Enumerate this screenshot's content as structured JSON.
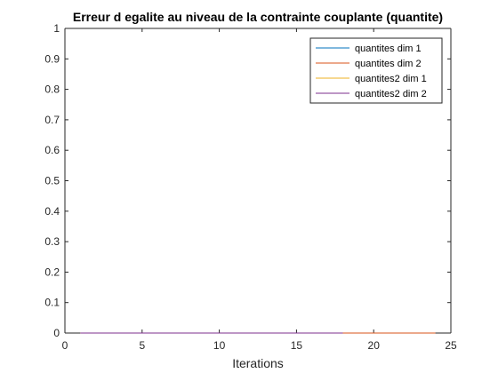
{
  "chart_data": {
    "type": "line",
    "title": "Erreur d egalite au niveau de la contrainte couplante (quantite)",
    "xlabel": "Iterations",
    "ylabel": "",
    "xlim": [
      0,
      25
    ],
    "ylim": [
      0,
      1
    ],
    "xticks": [
      0,
      5,
      10,
      15,
      20,
      25
    ],
    "yticks": [
      0,
      0.1,
      0.2,
      0.3,
      0.4,
      0.5,
      0.6,
      0.7,
      0.8,
      0.9,
      1
    ],
    "grid": false,
    "legend_position": "top-right",
    "series": [
      {
        "name": "quantites dim 1",
        "color": "#0072BD",
        "x": [
          1,
          2,
          3,
          4,
          5,
          6,
          7,
          8,
          9,
          10,
          11,
          12,
          13,
          14,
          15,
          16,
          17,
          18
        ],
        "y": [
          0,
          0,
          0,
          0,
          0,
          0,
          0,
          0,
          0,
          0,
          0,
          0,
          0,
          0,
          0,
          0,
          0,
          0
        ]
      },
      {
        "name": "quantites dim 2",
        "color": "#D95319",
        "x": [
          1,
          2,
          3,
          4,
          5,
          6,
          7,
          8,
          9,
          10,
          11,
          12,
          13,
          14,
          15,
          16,
          17,
          18,
          19,
          20,
          21,
          22,
          23,
          24
        ],
        "y": [
          0,
          0,
          0,
          0,
          0,
          0,
          0,
          0,
          0,
          0,
          0,
          0,
          0,
          0,
          0,
          0,
          0,
          0,
          0,
          0,
          0,
          0,
          0,
          0
        ]
      },
      {
        "name": "quantites2 dim 1",
        "color": "#EDB120",
        "x": [
          1,
          2,
          3,
          4,
          5,
          6,
          7,
          8,
          9,
          10,
          11,
          12,
          13,
          14,
          15,
          16,
          17,
          18
        ],
        "y": [
          0,
          0,
          0,
          0,
          0,
          0,
          0,
          0,
          0,
          0,
          0,
          0,
          0,
          0,
          0,
          0,
          0,
          0
        ]
      },
      {
        "name": "quantites2 dim 2",
        "color": "#7E2F8E",
        "x": [
          1,
          2,
          3,
          4,
          5,
          6,
          7,
          8,
          9,
          10,
          11,
          12,
          13,
          14,
          15,
          16,
          17,
          18
        ],
        "y": [
          0,
          0,
          0,
          0,
          0,
          0,
          0,
          0,
          0,
          0,
          0,
          0,
          0,
          0,
          0,
          0,
          0,
          0
        ]
      }
    ]
  }
}
